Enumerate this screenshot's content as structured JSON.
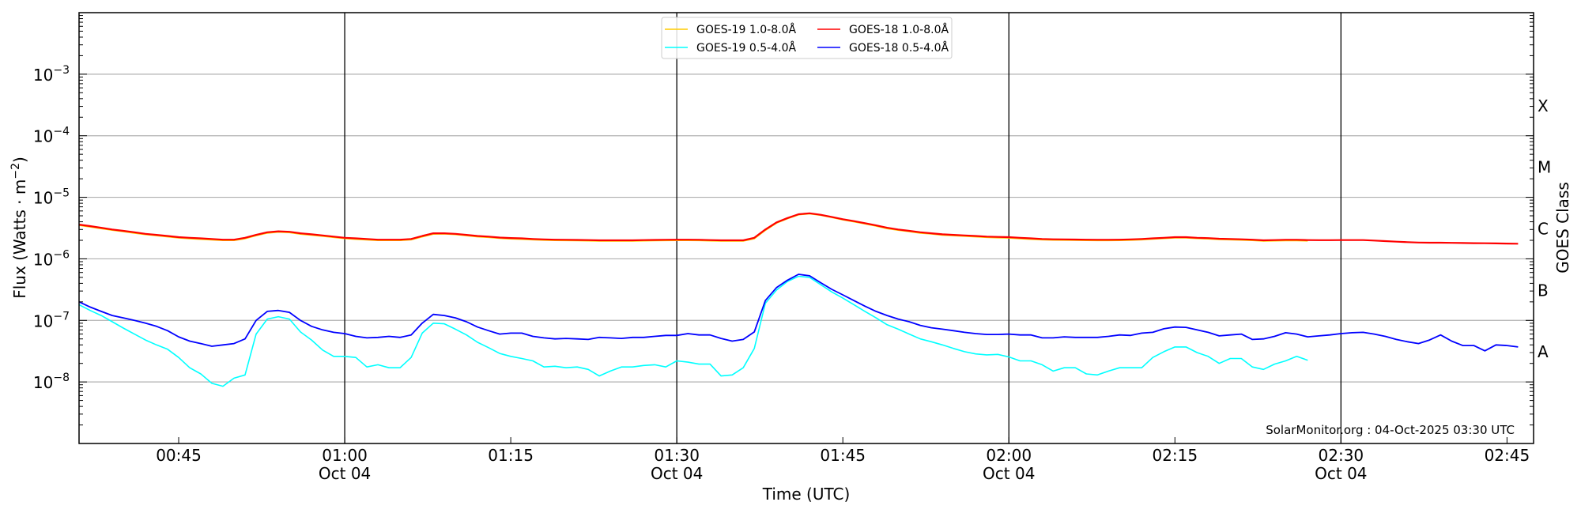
{
  "chart_data": {
    "type": "line",
    "title": "",
    "xlabel": "Time (UTC)",
    "ylabel": "Flux (Watts · m",
    "ylabel_exp": "−2",
    "ylabel_close": ")",
    "y2label": "GOES Class",
    "yscale": "log",
    "ylim": [
      1e-09,
      0.01
    ],
    "xlim_minutes_after_midnight": [
      36,
      167.4
    ],
    "x_start": "00:36",
    "x_step_minutes": 1,
    "grid": "horizontal at each decade, vertical at half-hours",
    "legend_position": "top-center",
    "x_ticks": [
      {
        "minute": 45,
        "label": "00:45",
        "date": ""
      },
      {
        "minute": 60,
        "label": "01:00",
        "date": "Oct 04"
      },
      {
        "minute": 75,
        "label": "01:15",
        "date": ""
      },
      {
        "minute": 90,
        "label": "01:30",
        "date": "Oct 04"
      },
      {
        "minute": 105,
        "label": "01:45",
        "date": ""
      },
      {
        "minute": 120,
        "label": "02:00",
        "date": "Oct 04"
      },
      {
        "minute": 135,
        "label": "02:15",
        "date": ""
      },
      {
        "minute": 150,
        "label": "02:30",
        "date": "Oct 04"
      },
      {
        "minute": 165,
        "label": "02:45",
        "date": ""
      }
    ],
    "y_ticks": [
      {
        "value": 0.001,
        "base": "10",
        "exp": "−3"
      },
      {
        "value": 0.0001,
        "base": "10",
        "exp": "−4"
      },
      {
        "value": 1e-05,
        "base": "10",
        "exp": "−5"
      },
      {
        "value": 1e-06,
        "base": "10",
        "exp": "−6"
      },
      {
        "value": 1e-07,
        "base": "10",
        "exp": "−7"
      },
      {
        "value": 1e-08,
        "base": "10",
        "exp": "−8"
      }
    ],
    "class_labels": [
      {
        "label": "X",
        "value": 0.000316
      },
      {
        "label": "M",
        "value": 3.16e-05
      },
      {
        "label": "C",
        "value": 3.16e-06
      },
      {
        "label": "B",
        "value": 3.16e-07
      },
      {
        "label": "A",
        "value": 3.16e-08
      }
    ],
    "series": [
      {
        "name": "GOES-19 1.0-8.0Å",
        "color": "#ffcc00",
        "width": 1.6,
        "values": [
          3.5e-06,
          3.3e-06,
          3.1e-06,
          2.92e-06,
          2.77e-06,
          2.62e-06,
          2.48e-06,
          2.38e-06,
          2.28e-06,
          2.19e-06,
          2.13e-06,
          2.08e-06,
          2.03e-06,
          1.99e-06,
          1.99e-06,
          2.13e-06,
          2.38e-06,
          2.62e-06,
          2.72e-06,
          2.67e-06,
          2.52e-06,
          2.43e-06,
          2.33e-06,
          2.23e-06,
          2.14e-06,
          2.08e-06,
          2.03e-06,
          1.99e-06,
          1.99e-06,
          1.99e-06,
          2.04e-06,
          2.28e-06,
          2.52e-06,
          2.53e-06,
          2.48e-06,
          2.38e-06,
          2.28e-06,
          2.23e-06,
          2.15e-06,
          2.11e-06,
          2.08e-06,
          2.04e-06,
          2.01e-06,
          1.99e-06,
          1.98e-06,
          1.97e-06,
          1.96e-06,
          1.94e-06,
          1.94e-06,
          1.94e-06,
          1.94e-06,
          1.96e-06,
          1.97e-06,
          1.98e-06,
          1.99e-06,
          1.99e-06,
          1.98e-06,
          1.96e-06,
          1.94e-06,
          1.94e-06,
          1.94e-06,
          2.12e-06,
          2.9e-06,
          3.8e-06,
          4.5e-06,
          5.2e-06,
          5.4e-06,
          5.1e-06,
          4.7e-06,
          4.3e-06,
          4e-06,
          3.7e-06,
          3.4e-06,
          3.1e-06,
          2.92e-06,
          2.77e-06,
          2.62e-06,
          2.53e-06,
          2.43e-06,
          2.38e-06,
          2.33e-06,
          2.28e-06,
          2.23e-06,
          2.2e-06,
          2.18e-06,
          2.13e-06,
          2.08e-06,
          2.04e-06,
          2.02e-06,
          2.01e-06,
          2e-06,
          1.99e-06,
          1.98e-06,
          1.98e-06,
          1.99e-06,
          2.01e-06,
          2.04e-06,
          2.09e-06,
          2.14e-06,
          2.19e-06,
          2.19e-06,
          2.14e-06,
          2.11e-06,
          2.06e-06,
          2.04e-06,
          2.02e-06,
          1.99e-06,
          1.94e-06,
          1.96e-06,
          1.97e-06,
          1.97e-06,
          1.95e-06
        ]
      },
      {
        "name": "GOES-18 1.0-8.0Å",
        "color": "#ff0000",
        "width": 2.2,
        "values": [
          3.6e-06,
          3.4e-06,
          3.2e-06,
          3e-06,
          2.85e-06,
          2.7e-06,
          2.55e-06,
          2.45e-06,
          2.35e-06,
          2.25e-06,
          2.2e-06,
          2.15e-06,
          2.1e-06,
          2.05e-06,
          2.05e-06,
          2.2e-06,
          2.45e-06,
          2.7e-06,
          2.8e-06,
          2.75e-06,
          2.6e-06,
          2.5e-06,
          2.4e-06,
          2.3e-06,
          2.2e-06,
          2.15e-06,
          2.1e-06,
          2.05e-06,
          2.05e-06,
          2.05e-06,
          2.1e-06,
          2.35e-06,
          2.6e-06,
          2.6e-06,
          2.55e-06,
          2.45e-06,
          2.35e-06,
          2.3e-06,
          2.22e-06,
          2.18e-06,
          2.15e-06,
          2.1e-06,
          2.07e-06,
          2.05e-06,
          2.04e-06,
          2.03e-06,
          2.02e-06,
          2e-06,
          2e-06,
          2e-06,
          2e-06,
          2.02e-06,
          2.03e-06,
          2.04e-06,
          2.05e-06,
          2.05e-06,
          2.04e-06,
          2.02e-06,
          2e-06,
          2e-06,
          2e-06,
          2.2e-06,
          3e-06,
          3.9e-06,
          4.6e-06,
          5.3e-06,
          5.5e-06,
          5.2e-06,
          4.8e-06,
          4.4e-06,
          4.1e-06,
          3.8e-06,
          3.5e-06,
          3.2e-06,
          3e-06,
          2.85e-06,
          2.7e-06,
          2.6e-06,
          2.5e-06,
          2.45e-06,
          2.4e-06,
          2.35e-06,
          2.3e-06,
          2.27e-06,
          2.25e-06,
          2.2e-06,
          2.15e-06,
          2.1e-06,
          2.08e-06,
          2.07e-06,
          2.06e-06,
          2.05e-06,
          2.04e-06,
          2.04e-06,
          2.05e-06,
          2.07e-06,
          2.1e-06,
          2.15e-06,
          2.2e-06,
          2.25e-06,
          2.25e-06,
          2.2e-06,
          2.17e-06,
          2.12e-06,
          2.1e-06,
          2.08e-06,
          2.05e-06,
          2e-06,
          2.02e-06,
          2.04e-06,
          2.04e-06,
          2.02e-06,
          2.01e-06,
          2.01e-06,
          2.02e-06,
          2.02e-06,
          2.02e-06,
          1.98e-06,
          1.94e-06,
          1.9e-06,
          1.87e-06,
          1.84e-06,
          1.83e-06,
          1.83e-06,
          1.82e-06,
          1.81e-06,
          1.8e-06,
          1.79e-06,
          1.78e-06,
          1.77e-06,
          1.76e-06
        ]
      },
      {
        "name": "GOES-19 0.5-4.0Å",
        "color": "#00ffff",
        "width": 1.6,
        "values": [
          1.8e-07,
          1.45e-07,
          1.2e-07,
          9.5e-08,
          7.5e-08,
          6e-08,
          4.8e-08,
          4e-08,
          3.4e-08,
          2.5e-08,
          1.7e-08,
          1.35e-08,
          9.5e-09,
          8.5e-09,
          1.15e-08,
          1.3e-08,
          6e-08,
          1.05e-07,
          1.15e-07,
          1.05e-07,
          6.5e-08,
          4.8e-08,
          3.3e-08,
          2.6e-08,
          2.6e-08,
          2.5e-08,
          1.75e-08,
          1.9e-08,
          1.7e-08,
          1.7e-08,
          2.5e-08,
          6.2e-08,
          9e-08,
          8.8e-08,
          7.2e-08,
          5.8e-08,
          4.4e-08,
          3.6e-08,
          2.9e-08,
          2.6e-08,
          2.4e-08,
          2.2e-08,
          1.75e-08,
          1.8e-08,
          1.7e-08,
          1.75e-08,
          1.6e-08,
          1.25e-08,
          1.5e-08,
          1.75e-08,
          1.75e-08,
          1.85e-08,
          1.9e-08,
          1.75e-08,
          2.2e-08,
          2.1e-08,
          1.95e-08,
          1.95e-08,
          1.25e-08,
          1.3e-08,
          1.7e-08,
          3.5e-08,
          1.9e-07,
          3.1e-07,
          4.3e-07,
          5.2e-07,
          5e-07,
          3.8e-07,
          2.9e-07,
          2.3e-07,
          1.8e-07,
          1.4e-07,
          1.1e-07,
          8.5e-08,
          7.2e-08,
          6e-08,
          5e-08,
          4.5e-08,
          4e-08,
          3.5e-08,
          3.1e-08,
          2.85e-08,
          2.75e-08,
          2.8e-08,
          2.55e-08,
          2.2e-08,
          2.2e-08,
          1.9e-08,
          1.5e-08,
          1.7e-08,
          1.7e-08,
          1.35e-08,
          1.3e-08,
          1.5e-08,
          1.7e-08,
          1.7e-08,
          1.7e-08,
          2.5e-08,
          3.1e-08,
          3.7e-08,
          3.7e-08,
          3e-08,
          2.6e-08,
          2e-08,
          2.4e-08,
          2.4e-08,
          1.75e-08,
          1.6e-08,
          1.95e-08,
          2.2e-08,
          2.6e-08,
          2.25e-08
        ]
      },
      {
        "name": "GOES-18 0.5-4.0Å",
        "color": "#0000ff",
        "width": 1.8,
        "values": [
          2e-07,
          1.65e-07,
          1.4e-07,
          1.2e-07,
          1.1e-07,
          1e-07,
          9e-08,
          8e-08,
          6.8e-08,
          5.4e-08,
          4.6e-08,
          4.2e-08,
          3.8e-08,
          4e-08,
          4.2e-08,
          5e-08,
          1e-07,
          1.4e-07,
          1.45e-07,
          1.35e-07,
          1e-07,
          8e-08,
          7e-08,
          6.4e-08,
          6.1e-08,
          5.5e-08,
          5.2e-08,
          5.3e-08,
          5.5e-08,
          5.3e-08,
          5.8e-08,
          9e-08,
          1.25e-07,
          1.2e-07,
          1.1e-07,
          9.5e-08,
          7.8e-08,
          6.8e-08,
          6e-08,
          6.2e-08,
          6.2e-08,
          5.5e-08,
          5.2e-08,
          5e-08,
          5.1e-08,
          5e-08,
          4.9e-08,
          5.3e-08,
          5.2e-08,
          5.1e-08,
          5.3e-08,
          5.3e-08,
          5.5e-08,
          5.7e-08,
          5.7e-08,
          6.1e-08,
          5.8e-08,
          5.8e-08,
          5.1e-08,
          4.6e-08,
          4.9e-08,
          6.5e-08,
          2.1e-07,
          3.4e-07,
          4.5e-07,
          5.6e-07,
          5.3e-07,
          4.1e-07,
          3.2e-07,
          2.6e-07,
          2.1e-07,
          1.7e-07,
          1.4e-07,
          1.2e-07,
          1.05e-07,
          9.5e-08,
          8.3e-08,
          7.6e-08,
          7.2e-08,
          6.8e-08,
          6.4e-08,
          6.1e-08,
          5.9e-08,
          5.9e-08,
          6e-08,
          5.8e-08,
          5.8e-08,
          5.2e-08,
          5.2e-08,
          5.4e-08,
          5.3e-08,
          5.3e-08,
          5.3e-08,
          5.5e-08,
          5.8e-08,
          5.7e-08,
          6.2e-08,
          6.4e-08,
          7.3e-08,
          7.8e-08,
          7.7e-08,
          7e-08,
          6.4e-08,
          5.6e-08,
          5.8e-08,
          6e-08,
          4.9e-08,
          5e-08,
          5.5e-08,
          6.3e-08,
          6e-08,
          5.4e-08,
          5.6e-08,
          5.8e-08,
          6.1e-08,
          6.3e-08,
          6.4e-08,
          6e-08,
          5.5e-08,
          4.9e-08,
          4.5e-08,
          4.2e-08,
          4.8e-08,
          5.8e-08,
          4.6e-08,
          3.9e-08,
          3.9e-08,
          3.2e-08,
          4e-08,
          3.9e-08,
          3.7e-08
        ]
      }
    ],
    "legend_order": [
      0,
      2,
      1,
      3
    ],
    "annotation": "SolarMonitor.org : 04-Oct-2025 03:30 UTC"
  }
}
